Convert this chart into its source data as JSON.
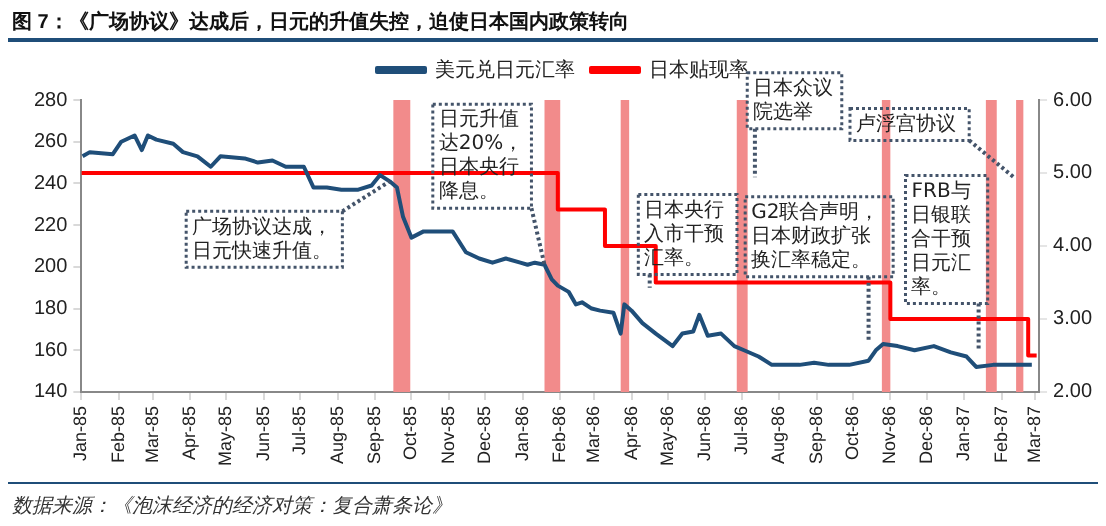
{
  "chart_data": {
    "type": "line",
    "title": "图 7：《广场协议》达成后，日元的升值失控，迫使日本国内政策转向",
    "series": [
      {
        "name": "美元兑日元汇率",
        "color": "#1f4e79",
        "x": [
          "1985-01-02",
          "1985-01-08",
          "1985-01-27",
          "1985-02-03",
          "1985-02-14",
          "1985-02-20",
          "1985-02-25",
          "1985-03-04",
          "1985-03-18",
          "1985-03-26",
          "1985-04-07",
          "1985-04-18",
          "1985-04-26",
          "1985-05-16",
          "1985-05-27",
          "1985-06-08",
          "1985-06-19",
          "1985-07-04",
          "1985-07-12",
          "1985-07-23",
          "1985-08-04",
          "1985-08-18",
          "1985-08-29",
          "1985-09-05",
          "1985-09-13",
          "1985-09-19",
          "1985-09-24",
          "1985-10-01",
          "1985-10-11",
          "1985-11-04",
          "1985-11-15",
          "1985-11-26",
          "1985-12-07",
          "1985-12-18",
          "1985-12-30",
          "1986-01-05",
          "1986-01-11",
          "1986-01-19",
          "1986-01-25",
          "1986-01-30",
          "1986-02-08",
          "1986-02-14",
          "1986-02-19",
          "1986-02-27",
          "1986-03-06",
          "1986-03-17",
          "1986-03-23",
          "1986-03-26",
          "1986-04-01",
          "1986-04-10",
          "1986-04-21",
          "1986-05-05",
          "1986-05-13",
          "1986-05-22",
          "1986-05-27",
          "1986-06-03",
          "1986-06-14",
          "1986-06-25",
          "1986-07-03",
          "1986-07-15",
          "1986-07-26",
          "1986-08-18",
          "1986-08-30",
          "1986-09-11",
          "1986-09-28",
          "1986-10-14",
          "1986-10-20",
          "1986-10-26",
          "1986-11-07",
          "1986-11-21",
          "1986-12-07",
          "1986-12-21",
          "1987-01-03",
          "1987-01-11",
          "1987-01-25",
          "1987-02-11",
          "1987-02-26"
        ],
        "values": [
          253,
          255,
          254,
          260,
          263,
          256,
          263,
          261,
          259,
          255,
          253,
          248,
          253,
          252,
          250,
          251,
          248,
          248,
          238,
          238,
          237,
          237,
          239,
          244,
          241,
          238,
          224,
          214,
          217,
          217,
          207,
          204,
          202,
          204,
          202,
          201,
          202,
          201,
          194,
          191,
          188,
          182,
          183,
          180,
          179,
          178,
          168,
          182,
          179,
          173,
          168,
          162,
          168,
          169,
          177,
          167,
          168,
          162,
          160,
          157,
          153,
          153,
          154,
          153,
          153,
          155,
          160,
          163,
          162,
          160,
          162,
          159,
          157,
          152,
          153,
          153,
          153
        ]
      },
      {
        "name": "日本贴现率",
        "type": "step",
        "axis": "y2",
        "color": "#ff0000",
        "x": [
          "1985-01-01",
          "1986-01-30",
          "1986-03-10",
          "1986-04-21",
          "1986-11-01",
          "1987-02-23",
          "1987-03-02"
        ],
        "values": [
          5,
          4.5,
          4,
          3.5,
          3,
          2.5,
          2.5
        ]
      }
    ],
    "xlim": [
      "1985-01-01",
      "1987-03-04"
    ],
    "xticks": [
      {
        "value": "1985-01-01",
        "label": "Jan-85"
      },
      {
        "value": "1985-02-01",
        "label": "Feb-85"
      },
      {
        "value": "1985-03-01",
        "label": "Mar-85"
      },
      {
        "value": "1985-04-01",
        "label": "Apr-85"
      },
      {
        "value": "1985-05-01",
        "label": "May-85"
      },
      {
        "value": "1985-06-01",
        "label": "Jun-85"
      },
      {
        "value": "1985-07-01",
        "label": "Jul-85"
      },
      {
        "value": "1985-08-01",
        "label": "Aug-85"
      },
      {
        "value": "1985-09-01",
        "label": "Sep-85"
      },
      {
        "value": "1985-10-01",
        "label": "Oct-85"
      },
      {
        "value": "1985-11-01",
        "label": "Nov-85"
      },
      {
        "value": "1985-12-01",
        "label": "Dec-85"
      },
      {
        "value": "1986-01-01",
        "label": "Jan-86"
      },
      {
        "value": "1986-02-01",
        "label": "Feb-86"
      },
      {
        "value": "1986-03-01",
        "label": "Mar-86"
      },
      {
        "value": "1986-04-01",
        "label": "Apr-86"
      },
      {
        "value": "1986-05-01",
        "label": "May-86"
      },
      {
        "value": "1986-06-01",
        "label": "Jun-86"
      },
      {
        "value": "1986-07-01",
        "label": "Jul-86"
      },
      {
        "value": "1986-08-01",
        "label": "Aug-86"
      },
      {
        "value": "1986-09-01",
        "label": "Sep-86"
      },
      {
        "value": "1986-10-01",
        "label": "Oct-86"
      },
      {
        "value": "1986-11-01",
        "label": "Nov-86"
      },
      {
        "value": "1986-12-01",
        "label": "Dec-86"
      },
      {
        "value": "1987-01-01",
        "label": "Jan-87"
      },
      {
        "value": "1987-02-01",
        "label": "Feb-87"
      },
      {
        "value": "1987-03-01",
        "label": "Mar-87"
      }
    ],
    "ylim": [
      140,
      280
    ],
    "yticks": [
      140,
      160,
      180,
      200,
      220,
      240,
      260,
      280
    ],
    "y2lim": [
      2,
      6
    ],
    "y2ticks": [
      {
        "value": 2,
        "label": "2.00"
      },
      {
        "value": 3,
        "label": "3.00"
      },
      {
        "value": 4,
        "label": "4.00"
      },
      {
        "value": 5,
        "label": "5.00"
      },
      {
        "value": 6,
        "label": "6.00"
      }
    ],
    "bands": [
      {
        "axis": "x",
        "from": "1985-09-16",
        "to": "1985-09-30",
        "color": "#f28b8b"
      },
      {
        "axis": "x",
        "from": "1986-01-19",
        "to": "1986-02-01",
        "color": "#f28b8b"
      },
      {
        "axis": "x",
        "from": "1986-03-23",
        "to": "1986-03-30",
        "color": "#f28b8b"
      },
      {
        "axis": "x",
        "from": "1986-06-27",
        "to": "1986-07-06",
        "color": "#f28b8b"
      },
      {
        "axis": "x",
        "from": "1986-10-25",
        "to": "1986-11-01",
        "color": "#f28b8b"
      },
      {
        "axis": "x",
        "from": "1987-01-19",
        "to": "1987-01-28",
        "color": "#f28b8b"
      },
      {
        "axis": "x",
        "from": "1987-02-13",
        "to": "1987-02-19",
        "color": "#f28b8b"
      }
    ],
    "annotations": [
      {
        "text": "广场协议达成，日元快速升值。",
        "x": "1985-09-13",
        "y": 241
      },
      {
        "text": "日元升值达20%，日本央行降息。",
        "x": "1986-01-19",
        "y": 201
      },
      {
        "text": "日本央行入市干预汇率。",
        "x": "1986-04-16",
        "y": 190
      },
      {
        "text": "日本众议院选举",
        "x": "1986-07-12",
        "y": 243
      },
      {
        "text": "G2联合声明，日本财政扩张换汇率稳定。",
        "x": "1986-10-14",
        "y": 164
      },
      {
        "text": "卢浮宫协议",
        "x": "1987-02-11",
        "y": 243
      },
      {
        "text": "FRB与日银联合干预日元汇率。",
        "x": "1987-01-13",
        "y": 160
      },
      "数据来源：《泡沫经济的经济对策：复合萧条论》"
    ],
    "legend": "top",
    "marker": "none",
    "line_style": "solid"
  }
}
